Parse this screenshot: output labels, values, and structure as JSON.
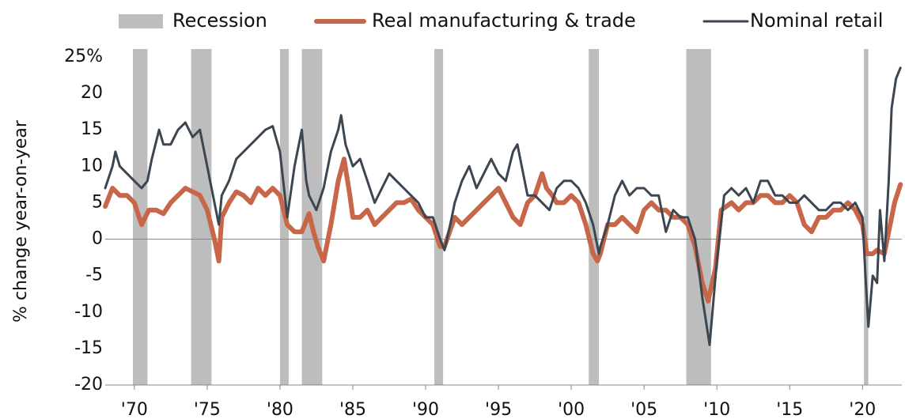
{
  "chart_data": {
    "type": "line",
    "ylabel": "% change year-on-year",
    "xlim": [
      1968,
      2022.7
    ],
    "ylim": [
      -20,
      25
    ],
    "xticks": [
      {
        "value": 1970,
        "label": "'70"
      },
      {
        "value": 1975,
        "label": "'75"
      },
      {
        "value": 1980,
        "label": "'80"
      },
      {
        "value": 1985,
        "label": "'85"
      },
      {
        "value": 1990,
        "label": "'90"
      },
      {
        "value": 1995,
        "label": "'95"
      },
      {
        "value": 2000,
        "label": "'00"
      },
      {
        "value": 2005,
        "label": "'05"
      },
      {
        "value": 2010,
        "label": "'10"
      },
      {
        "value": 2015,
        "label": "'15"
      },
      {
        "value": 2020,
        "label": "'20"
      }
    ],
    "yticks": [
      {
        "value": 25,
        "label": "25%"
      },
      20,
      15,
      10,
      5,
      0,
      -5,
      -10,
      -15,
      -20
    ],
    "recession": {
      "name": "Recession",
      "color": "#bdbdbd",
      "periods": [
        [
          1969.9,
          1970.9
        ],
        [
          1973.9,
          1975.3
        ],
        [
          1980.0,
          1980.6
        ],
        [
          1981.5,
          1982.9
        ],
        [
          1990.6,
          1991.2
        ],
        [
          2001.2,
          2001.9
        ],
        [
          2007.9,
          2009.6
        ],
        [
          2020.1,
          2020.4
        ]
      ]
    },
    "series": [
      {
        "name": "Real manufacturing & trade",
        "color": "#c8664a",
        "width": 6,
        "x": [
          1968,
          1968.5,
          1969,
          1969.5,
          1970,
          1970.5,
          1971,
          1971.5,
          1972,
          1972.5,
          1973,
          1973.5,
          1974,
          1974.5,
          1975,
          1975.5,
          1975.8,
          1976,
          1976.5,
          1977,
          1977.5,
          1978,
          1978.5,
          1979,
          1979.5,
          1980,
          1980.5,
          1981,
          1981.5,
          1982,
          1982.3,
          1982.6,
          1983,
          1983.5,
          1984,
          1984.4,
          1984.8,
          1985,
          1985.5,
          1986,
          1986.5,
          1987,
          1987.5,
          1988,
          1988.5,
          1989,
          1989.5,
          1990,
          1990.5,
          1991,
          1991.3,
          1992,
          1992.5,
          1993,
          1993.5,
          1994,
          1994.5,
          1995,
          1995.5,
          1996,
          1996.5,
          1997,
          1997.5,
          1998,
          1998.3,
          1998.7,
          1999,
          1999.5,
          2000,
          2000.5,
          2001,
          2001.5,
          2001.8,
          2002,
          2002.5,
          2003,
          2003.5,
          2004,
          2004.5,
          2005,
          2005.5,
          2006,
          2006.5,
          2007,
          2007.5,
          2008,
          2008.5,
          2009,
          2009.4,
          2009.9,
          2010.3,
          2011,
          2011.5,
          2012,
          2012.5,
          2013,
          2013.5,
          2014,
          2014.5,
          2015,
          2015.5,
          2016,
          2016.5,
          2017,
          2017.5,
          2018,
          2018.5,
          2019,
          2019.5,
          2020,
          2020.3,
          2020.7,
          2021,
          2021.5,
          2021.8,
          2022.2,
          2022.6
        ],
        "values": [
          4.5,
          7,
          6,
          6,
          5,
          2,
          4,
          4,
          3.5,
          5,
          6,
          7,
          6.5,
          6,
          4,
          0,
          -3,
          3,
          5,
          6.5,
          6,
          5,
          7,
          6,
          7,
          6,
          2,
          1,
          1,
          3.5,
          1,
          -1,
          -3,
          2,
          8,
          11,
          6,
          3,
          3,
          4,
          2,
          3,
          4,
          5,
          5,
          5.5,
          4,
          3,
          2,
          -1,
          -1,
          3,
          2,
          3,
          4,
          5,
          6,
          7,
          5,
          3,
          2,
          5,
          6,
          9,
          7,
          6,
          5,
          5,
          6,
          5,
          2,
          -2,
          -3,
          -2,
          2,
          2,
          3,
          2,
          1,
          4,
          5,
          4,
          4,
          3,
          3,
          2,
          -1,
          -6,
          -8.5,
          -4,
          4,
          5,
          4,
          5,
          5,
          6,
          6,
          5,
          5,
          6,
          5,
          2,
          1,
          3,
          3,
          4,
          4,
          5,
          4,
          2,
          -2,
          -2,
          -1.5,
          -2,
          1,
          5,
          7.5
        ]
      },
      {
        "name": "Nominal retail",
        "color": "#3b4650",
        "width": 3,
        "x": [
          1968,
          1968.5,
          1968.7,
          1969,
          1969.5,
          1970,
          1970.5,
          1970.9,
          1971.2,
          1971.7,
          1972,
          1972.5,
          1973,
          1973.5,
          1974,
          1974.5,
          1975,
          1975.5,
          1975.8,
          1976,
          1976.5,
          1977,
          1977.5,
          1978,
          1978.5,
          1979,
          1979.5,
          1980,
          1980.5,
          1981,
          1981.5,
          1981.8,
          1982,
          1982.5,
          1983,
          1983.5,
          1984,
          1984.2,
          1984.5,
          1985,
          1985.5,
          1986,
          1986.5,
          1987,
          1987.5,
          1988,
          1988.5,
          1989,
          1989.5,
          1990,
          1990.5,
          1991,
          1991.3,
          1991.8,
          1992,
          1992.5,
          1993,
          1993.5,
          1994,
          1994.5,
          1995,
          1995.5,
          1996,
          1996.3,
          1996.8,
          1997,
          1997.5,
          1998,
          1998.5,
          1999,
          1999.5,
          2000,
          2000.5,
          2001,
          2001.5,
          2001.9,
          2002,
          2002.5,
          2003,
          2003.5,
          2004,
          2004.5,
          2005,
          2005.5,
          2006,
          2006.3,
          2006.5,
          2007,
          2007.5,
          2008,
          2008.5,
          2009,
          2009.5,
          2010,
          2010.5,
          2011,
          2011.5,
          2012,
          2012.5,
          2013,
          2013.5,
          2014,
          2014.5,
          2015,
          2015.5,
          2016,
          2016.5,
          2017,
          2017.5,
          2018,
          2018.5,
          2019,
          2019.5,
          2020,
          2020.2,
          2020.4,
          2020.7,
          2021,
          2021.2,
          2021.5,
          2021.8,
          2022,
          2022.3,
          2022.6
        ],
        "values": [
          7,
          10,
          12,
          10,
          9,
          8,
          7,
          8,
          11,
          15,
          13,
          13,
          15,
          16,
          14,
          15,
          10,
          5,
          2,
          6,
          8,
          11,
          12,
          13,
          14,
          15,
          15.5,
          12,
          3,
          10,
          15,
          8,
          6,
          4,
          7,
          12,
          15,
          17,
          13,
          10,
          11,
          8,
          5,
          7,
          9,
          8,
          7,
          6,
          5,
          3,
          3,
          0,
          -1.5,
          3,
          5,
          8,
          10,
          7,
          9,
          11,
          9,
          8,
          12,
          13,
          8,
          6,
          6,
          5,
          4,
          7,
          8,
          8,
          7,
          5,
          2,
          -2,
          -1,
          2,
          6,
          8,
          6,
          7,
          7,
          6,
          6,
          3,
          1,
          4,
          3,
          3,
          0,
          -8,
          -14.5,
          -3,
          6,
          7,
          6,
          7,
          5,
          8,
          8,
          6,
          6,
          5,
          5,
          6,
          5,
          4,
          4,
          5,
          5,
          4,
          5,
          3,
          -5,
          -12,
          -5,
          -6,
          4,
          -3,
          8,
          18,
          22,
          23.5
        ]
      }
    ]
  }
}
